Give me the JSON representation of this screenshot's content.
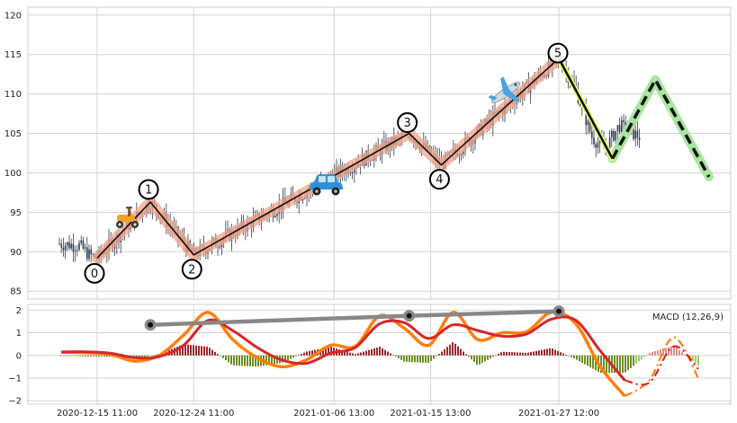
{
  "chart_data": [
    {
      "type": "candlestick",
      "panel": "price",
      "grid": true,
      "ylim": [
        84,
        121
      ],
      "yticks": [
        "85",
        "90",
        "95",
        "100",
        "105",
        "110",
        "115",
        "120"
      ],
      "colors": {
        "candle": "#2f3e55",
        "wave_band": "#f4a58a",
        "wave_line": "#111111",
        "projection_band": "#a8e6a0",
        "projection_line": "#111111",
        "highlight": "#e8ff70"
      },
      "wave_points": [
        {
          "label": "0",
          "x": "2020-12-15 11:00",
          "y": 89.2
        },
        {
          "label": "1",
          "x": "2020-12-20 10:00",
          "y": 96.3
        },
        {
          "label": "2",
          "x": "2020-12-24 11:00",
          "y": 89.6
        },
        {
          "label": "3",
          "x": "2021-01-13 13:00",
          "y": 105.0
        },
        {
          "label": "4",
          "x": "2021-01-16 13:00",
          "y": 101.0
        },
        {
          "label": "5",
          "x": "2021-01-27 12:00",
          "y": 114.5
        }
      ],
      "projection": [
        {
          "x": "2021-01-27 12:00",
          "y": 114.5
        },
        {
          "x": "2021-02-01 12:00",
          "y": 101.8
        },
        {
          "x": "2021-02-05 12:00",
          "y": 111.8
        },
        {
          "x": "2021-02-10 12:00",
          "y": 99.5
        }
      ],
      "icons": [
        "scooter-icon",
        "car-icon",
        "airplane-icon"
      ]
    },
    {
      "type": "line",
      "panel": "macd",
      "grid": true,
      "ylim": [
        -2.15,
        2.25
      ],
      "yticks": [
        "2",
        "1",
        "0",
        "−1",
        "−2"
      ],
      "legend_text": "MACD (12,26,9)",
      "x_ticks": [
        "2020-12-15 11:00",
        "2020-12-24 11:00",
        "2021-01-06 13:00",
        "2021-01-15 13:00",
        "2021-01-27 12:00"
      ],
      "series": [
        {
          "color": "#ff7f0e",
          "values": [
            0.15,
            0.12,
            0.05,
            -0.25,
            0.0,
            0.9,
            1.9,
            0.7,
            -0.1,
            -0.5,
            -0.2,
            0.45,
            0.4,
            1.75,
            1.2,
            0.45,
            1.9,
            0.7,
            1.0,
            1.05,
            1.9,
            1.4,
            -0.5,
            -1.8,
            -1.1,
            0.8,
            -1.0
          ]
        },
        {
          "color": "#d62728",
          "values": [
            0.15,
            0.16,
            0.1,
            -0.1,
            -0.05,
            0.45,
            1.55,
            1.1,
            0.35,
            -0.2,
            -0.35,
            0.1,
            0.35,
            1.4,
            1.45,
            0.75,
            1.35,
            1.1,
            0.85,
            0.95,
            1.6,
            1.55,
            0.2,
            -1.1,
            -1.2,
            0.4,
            -0.6
          ]
        }
      ],
      "histogram": {
        "positive_color": "#a0262c",
        "negative_color": "#6b8e23",
        "projection_positive_color": "#e88a8a",
        "projection_negative_color": "#9ccc65"
      },
      "divergence_line": {
        "color": "#888888",
        "points": [
          {
            "x": "2020-12-20 10:00",
            "y": 1.35
          },
          {
            "x": "2021-01-13 13:00",
            "y": 1.75
          },
          {
            "x": "2021-01-27 12:00",
            "y": 1.95
          }
        ]
      }
    }
  ]
}
